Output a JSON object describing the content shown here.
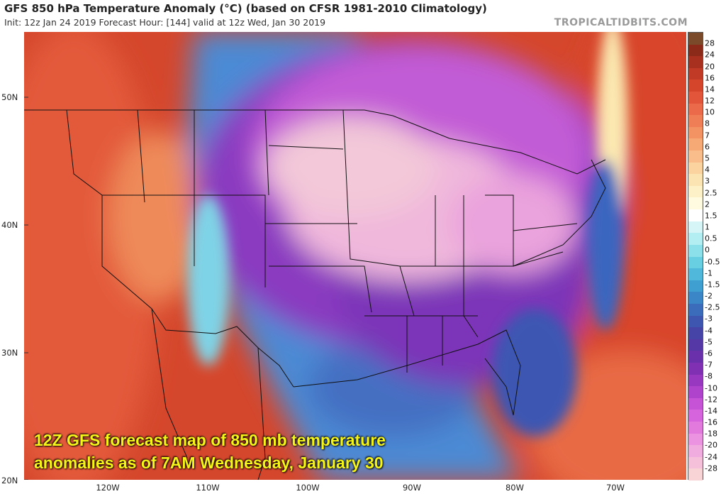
{
  "header": {
    "title": "GFS 850 hPa Temperature Anomaly (°C) (based on CFSR 1981-2010 Climatology)",
    "subtitle": "Init: 12z Jan 24 2019   Forecast Hour: [144]   valid at 12z Wed, Jan 30 2019",
    "brand": "TROPICALTIDBITS.COM"
  },
  "caption": {
    "line1": "12Z GFS forecast map of 850 mb temperature",
    "line2": "anomalies as of 7AM Wednesday, January 30"
  },
  "axes": {
    "lat_labels": [
      "50N",
      "40N",
      "30N",
      "20N"
    ],
    "lon_labels": [
      "120W",
      "110W",
      "100W",
      "90W",
      "80W",
      "70W"
    ]
  },
  "colorbar": {
    "labels": [
      "28",
      "24",
      "20",
      "16",
      "14",
      "12",
      "10",
      "8",
      "7",
      "6",
      "5",
      "4",
      "3",
      "2.5",
      "2",
      "1.5",
      "1",
      "0.5",
      "0",
      "-0.5",
      "-1",
      "-1.5",
      "-2",
      "-2.5",
      "-3",
      "-4",
      "-5",
      "-6",
      "-7",
      "-8",
      "-10",
      "-12",
      "-14",
      "-16",
      "-18",
      "-20",
      "-24",
      "-28"
    ],
    "colors": [
      "#7a4a2a",
      "#8c2a1a",
      "#a8301f",
      "#c13a25",
      "#d4452b",
      "#e2553a",
      "#ea6a4a",
      "#ef7d56",
      "#f39263",
      "#f6a875",
      "#f8bd8a",
      "#fad39f",
      "#fbe3b2",
      "#fdf1c8",
      "#fffbe0",
      "#ffffff",
      "#d6f5f7",
      "#b2eef2",
      "#8ce0ea",
      "#68cfe2",
      "#4fb8db",
      "#3f9fd0",
      "#3a86c6",
      "#3a6cbb",
      "#3e56b0",
      "#4744a8",
      "#5538a6",
      "#6a30ab",
      "#8030b2",
      "#9838c0",
      "#b043cc",
      "#c652d6",
      "#d664dc",
      "#e27ade",
      "#eb93e0",
      "#f0abdf",
      "#f4c0da",
      "#f8d4d6"
    ]
  }
}
